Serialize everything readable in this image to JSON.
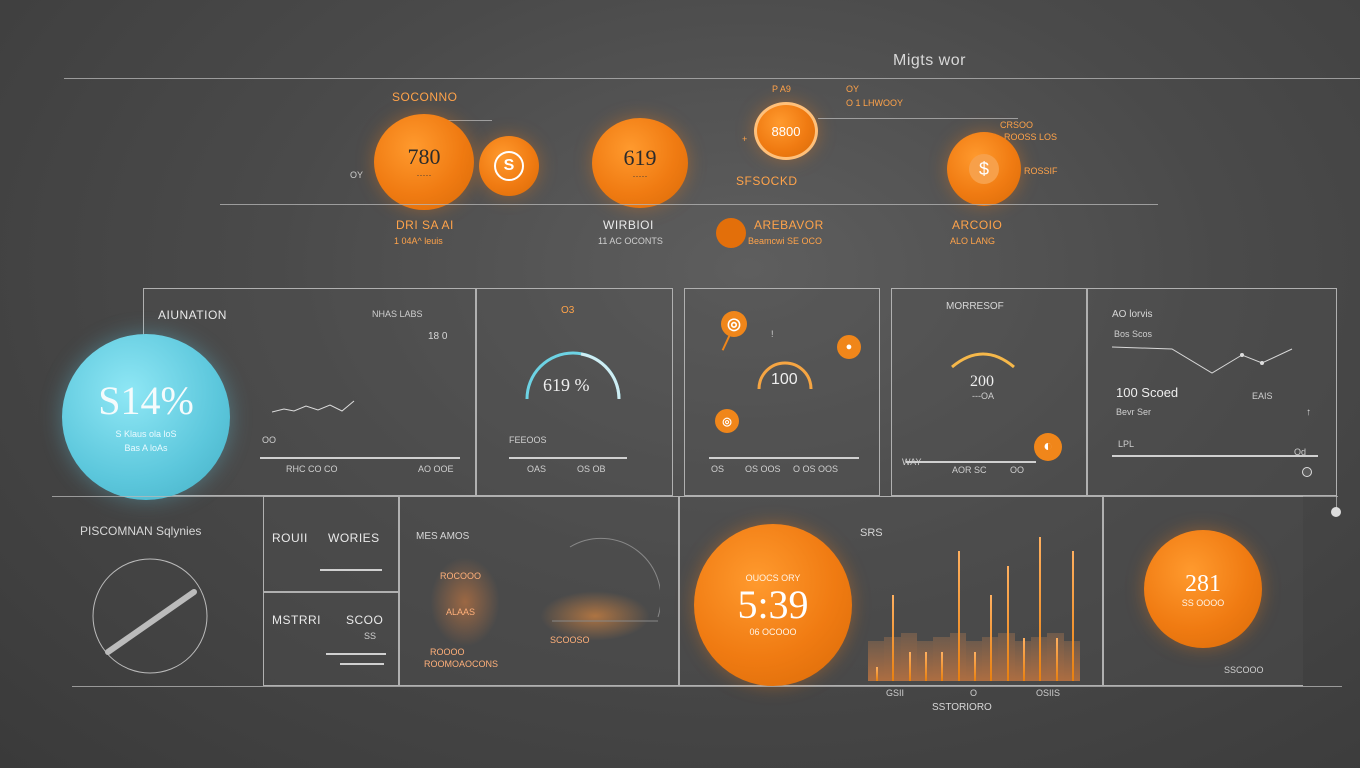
{
  "header": {
    "title": "Migts wor"
  },
  "top": {
    "stat1": {
      "label": "SOCONNO",
      "value": "780",
      "sub": "·····",
      "side_label": "OY",
      "cap1": "DRI SA AI",
      "cap2": "1 04A^ leuis"
    },
    "stat1_icon": "S",
    "stat2": {
      "value": "619",
      "sub": "·····",
      "cap1": "WIRBIOI",
      "cap2": "11 AC OCONTS"
    },
    "stat3": {
      "value": "8800",
      "top_label": "P A9",
      "label": "SFSOCKD",
      "side1": "OY",
      "side2": "O 1 LHWOOY",
      "mark": "+",
      "cap1": "AREBAVOR",
      "cap2": "Beamcwi SE OCO"
    },
    "stat4": {
      "icon": "$",
      "label1": "CRSOO",
      "label2": "ROOSS LOS",
      "side": "ROSSIF",
      "cap1": "ARCOIO",
      "cap2": "ALO LANG"
    }
  },
  "cyan_stat": {
    "value": "S14%",
    "sub1": "S  Klaus  ola loS",
    "sub2": "Bas  A loAs"
  },
  "panels": {
    "p1": {
      "title": "AIUNATION",
      "r1": "NHAS  LABS",
      "r2": "18 0",
      "footer_left": "OO",
      "footer_mid": "RHC CO CO",
      "footer_right": "AO OOE"
    },
    "p2": {
      "top": "O3",
      "value": "619 %",
      "footer_left": "FEEOOS",
      "footer_mid": "OAS",
      "footer_right": "OS   OB"
    },
    "p3": {
      "value": "100",
      "plus": "!",
      "footer_left": "OS",
      "footer_mid": "OS  OOS",
      "footer_right": "O OS OOS"
    },
    "p4": {
      "title": "MORRESOF",
      "value": "200",
      "sub": "---OA",
      "footer_left": "WAY",
      "footer_mid": "AOR SC",
      "footer_right": "OO"
    },
    "p5": {
      "t1": "AO  lorvis",
      "t2": "Bos Scos",
      "v1": "100 Scoed",
      "v2": "Bevr Ser",
      "v3": "EAIS",
      "v4": "LPL",
      "v5": "Od"
    }
  },
  "bottom": {
    "gauge_title": "PISCOMNAN Sqlynies",
    "c1": {
      "row1a": "ROUII",
      "row1b": "WORIES",
      "row2a": "MSTRRI",
      "row2b": "SCOO",
      "row2c": "SS"
    },
    "c2": {
      "title": "MES AMOS",
      "l1": "ROCOOO",
      "l2": "ALAAS",
      "l3": "SCOOSO",
      "l4": "ROOOO",
      "l5": "ROOMOAOCONS"
    },
    "c3": {
      "sub": "OUOCS ORY",
      "value": "5:39",
      "caption": "06 OCOOO",
      "title": "SRS",
      "x1": "GSII",
      "x2": "O",
      "x3": "OSIIS",
      "footer": "SSTORIORO"
    },
    "c4": {
      "value": "281",
      "sub": "SS OOOO",
      "caption": "SSCOOO"
    }
  },
  "chart_data": {
    "type": "bar",
    "title": "SRS",
    "values": [
      0.1,
      0.6,
      0.2,
      0.2,
      0.2,
      0.9,
      0.2,
      0.6,
      0.8,
      0.3,
      1.0,
      0.3,
      0.9
    ]
  },
  "colors": {
    "accent": "#f07b12",
    "cyan": "#5cc7dc",
    "bg": "#4a4a4a",
    "line": "#b8b8b8"
  }
}
